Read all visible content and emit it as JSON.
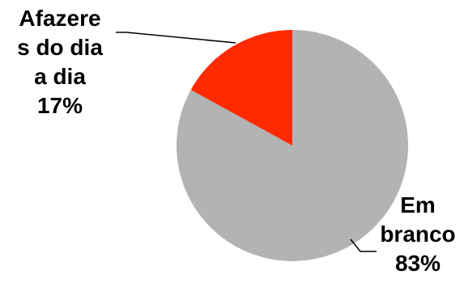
{
  "chart_data": {
    "type": "pie",
    "title": "",
    "start_angle_deg": 0,
    "direction": "clockwise",
    "slices": [
      {
        "label_lines": [
          "Em",
          "branco"
        ],
        "percent_text": "83%",
        "value": 83,
        "color": "#b3b3b3"
      },
      {
        "label_lines": [
          "Afazere",
          "s do dia",
          "a dia"
        ],
        "percent_text": "17%",
        "value": 17,
        "color": "#ff2a00"
      }
    ]
  }
}
